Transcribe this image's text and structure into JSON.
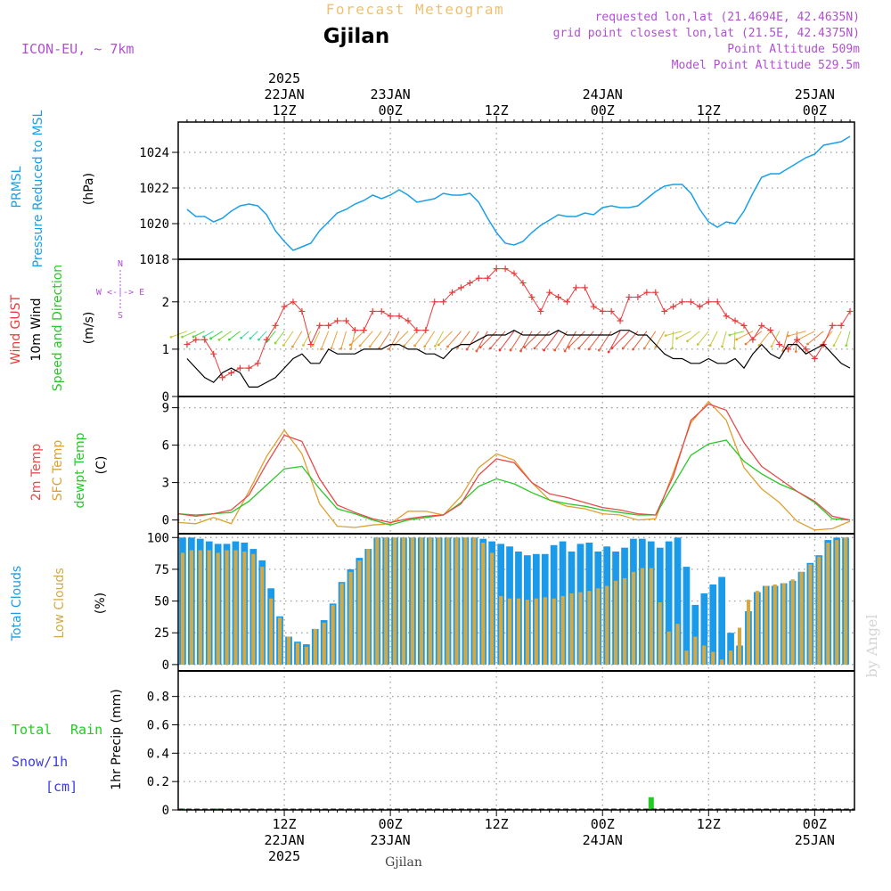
{
  "header": {
    "title": "Forecast Meteogram",
    "location": "Gjilan",
    "model": "ICON-EU, ~ 7km",
    "requested": "requested lon,lat (21.4694E, 42.4635N)",
    "grid": "grid point closest lon,lat (21.5E, 42.4375N)",
    "point_alt": "Point Altitude 509m",
    "model_alt": "Model Point Altitude 529.5m",
    "footer_location": "Gjilan",
    "credit": "by Angel"
  },
  "colors": {
    "pressure": "#1aa0e8",
    "gust": "#e83c3c",
    "wind": "#000000",
    "t2m": "#e84a4a",
    "sfc": "#e0a030",
    "dewpt": "#28c828",
    "total_clouds": "#1a9ae8",
    "low_clouds": "#d4a843",
    "rain": "#22cc22",
    "snow": "#3a3ae8",
    "purple": "#b050d0",
    "orange_title": "#f0c070"
  },
  "time_axis": {
    "top_labels": [
      {
        "h": 12,
        "lines": [
          "2025",
          "22JAN",
          "12Z"
        ]
      },
      {
        "h": 24,
        "lines": [
          "23JAN",
          "00Z"
        ]
      },
      {
        "h": 36,
        "lines": [
          "12Z"
        ]
      },
      {
        "h": 48,
        "lines": [
          "24JAN",
          "00Z"
        ]
      },
      {
        "h": 60,
        "lines": [
          "12Z"
        ]
      },
      {
        "h": 72,
        "lines": [
          "25JAN",
          "00Z"
        ]
      }
    ],
    "bottom_labels": [
      {
        "h": 12,
        "lines": [
          "12Z",
          "22JAN",
          "2025"
        ]
      },
      {
        "h": 24,
        "lines": [
          "00Z",
          "23JAN"
        ]
      },
      {
        "h": 36,
        "lines": [
          "12Z"
        ]
      },
      {
        "h": 48,
        "lines": [
          "00Z",
          "24JAN"
        ]
      },
      {
        "h": 60,
        "lines": [
          "12Z"
        ]
      },
      {
        "h": 72,
        "lines": [
          "00Z",
          "25JAN"
        ]
      }
    ]
  },
  "panel_labels": {
    "pressure": [
      "PRMSL",
      "Pressure Reduced to MSL",
      "(hPa)"
    ],
    "wind": [
      "Wind GUST",
      "10m Wind",
      "Speed and Direction",
      "(m/s)"
    ],
    "compass": [
      "N",
      "W <-|-> E",
      "S"
    ],
    "temp": [
      "2m Temp",
      "SFC Temp",
      "dewpt Temp",
      "(C)"
    ],
    "clouds": [
      "Total Clouds",
      "Low Clouds",
      "(%)"
    ],
    "precip": [
      "Total",
      "Rain",
      "Snow/1h",
      "[cm]",
      "1hr Precip (mm)"
    ]
  },
  "chart_data": [
    {
      "type": "line",
      "title": "PRMSL",
      "ylabel": "(hPa)",
      "ylim": [
        1018,
        1025.7
      ],
      "yticks": [
        1018,
        1020,
        1022,
        1024
      ],
      "x_hours": [
        1,
        2,
        3,
        4,
        5,
        6,
        7,
        8,
        9,
        10,
        11,
        12,
        13,
        14,
        15,
        16,
        17,
        18,
        19,
        20,
        21,
        22,
        23,
        24,
        25,
        26,
        27,
        28,
        29,
        30,
        31,
        32,
        33,
        34,
        35,
        36,
        37,
        38,
        39,
        40,
        41,
        42,
        43,
        44,
        45,
        46,
        47,
        48,
        49,
        50,
        51,
        52,
        53,
        54,
        55,
        56,
        57,
        58,
        59,
        60,
        61,
        62,
        63,
        64,
        65,
        66,
        67,
        68,
        69,
        70,
        71,
        72,
        73,
        74,
        75,
        76
      ],
      "values": [
        1020.8,
        1020.4,
        1020.4,
        1020.1,
        1020.3,
        1020.7,
        1021.0,
        1021.1,
        1021.0,
        1020.5,
        1019.6,
        1019.0,
        1018.5,
        1018.7,
        1018.9,
        1019.6,
        1020.1,
        1020.6,
        1020.8,
        1021.1,
        1021.3,
        1021.6,
        1021.4,
        1021.6,
        1021.9,
        1021.6,
        1021.2,
        1021.3,
        1021.4,
        1021.7,
        1021.6,
        1021.6,
        1021.7,
        1021.2,
        1020.3,
        1019.5,
        1018.9,
        1018.8,
        1019.0,
        1019.5,
        1019.9,
        1020.2,
        1020.5,
        1020.4,
        1020.4,
        1020.6,
        1020.5,
        1020.9,
        1021.0,
        1020.9,
        1020.9,
        1021.0,
        1021.4,
        1021.8,
        1022.1,
        1022.2,
        1022.2,
        1021.7,
        1020.8,
        1020.1,
        1019.8,
        1020.1,
        1020.0,
        1020.7,
        1021.7,
        1022.6,
        1022.8,
        1022.8,
        1023.1,
        1023.4,
        1023.7,
        1023.9,
        1024.4,
        1024.5,
        1024.6,
        1024.9
      ]
    },
    {
      "type": "line",
      "title": "Wind",
      "ylabel": "(m/s)",
      "ylim": [
        0,
        2.9
      ],
      "yticks": [
        0,
        1,
        2
      ],
      "x_hours": [
        1,
        2,
        3,
        4,
        5,
        6,
        7,
        8,
        9,
        10,
        11,
        12,
        13,
        14,
        15,
        16,
        17,
        18,
        19,
        20,
        21,
        22,
        23,
        24,
        25,
        26,
        27,
        28,
        29,
        30,
        31,
        32,
        33,
        34,
        35,
        36,
        37,
        38,
        39,
        40,
        41,
        42,
        43,
        44,
        45,
        46,
        47,
        48,
        49,
        50,
        51,
        52,
        53,
        54,
        55,
        56,
        57,
        58,
        59,
        60,
        61,
        62,
        63,
        64,
        65,
        66,
        67,
        68,
        69,
        70,
        71,
        72,
        73,
        74,
        75,
        76
      ],
      "series": [
        {
          "name": "Wind GUST",
          "values": [
            1.1,
            1.2,
            1.2,
            0.9,
            0.4,
            0.5,
            0.6,
            0.6,
            0.7,
            1.2,
            1.5,
            1.9,
            2.0,
            1.8,
            1.1,
            1.5,
            1.5,
            1.6,
            1.6,
            1.4,
            1.4,
            1.8,
            1.8,
            1.7,
            1.7,
            1.6,
            1.4,
            1.4,
            2.0,
            2.0,
            2.2,
            2.3,
            2.4,
            2.5,
            2.5,
            2.7,
            2.7,
            2.6,
            2.4,
            2.1,
            1.8,
            2.2,
            2.1,
            2.0,
            2.3,
            2.3,
            1.9,
            1.8,
            1.8,
            1.6,
            2.1,
            2.1,
            2.2,
            2.2,
            1.8,
            1.9,
            2.0,
            2.0,
            1.9,
            2.0,
            2.0,
            1.7,
            1.6,
            1.5,
            1.2,
            1.5,
            1.4,
            1.1,
            1.0,
            1.2,
            1.0,
            0.8,
            1.1,
            1.5,
            1.5,
            1.8
          ]
        },
        {
          "name": "10m Wind",
          "values": [
            0.8,
            0.6,
            0.4,
            0.3,
            0.5,
            0.6,
            0.5,
            0.2,
            0.2,
            0.3,
            0.4,
            0.6,
            0.8,
            0.9,
            0.7,
            0.7,
            1.0,
            0.9,
            0.9,
            0.9,
            1.0,
            1.0,
            1.0,
            1.1,
            1.1,
            1.0,
            1.0,
            0.9,
            0.9,
            0.8,
            1.0,
            1.1,
            1.1,
            1.2,
            1.3,
            1.3,
            1.3,
            1.4,
            1.3,
            1.3,
            1.3,
            1.3,
            1.4,
            1.3,
            1.3,
            1.3,
            1.3,
            1.3,
            1.3,
            1.4,
            1.4,
            1.3,
            1.3,
            1.1,
            0.9,
            0.8,
            0.8,
            0.7,
            0.7,
            0.8,
            0.7,
            0.7,
            0.8,
            0.6,
            0.9,
            1.1,
            0.9,
            0.8,
            1.1,
            1.1,
            0.9,
            1.0,
            1.1,
            0.9,
            0.7,
            0.6
          ]
        }
      ]
    },
    {
      "type": "line",
      "title": "Temperature",
      "ylabel": "(C)",
      "ylim": [
        -1.1,
        9.9
      ],
      "yticks": [
        0,
        3,
        6,
        9
      ],
      "x_hours": [
        0,
        2,
        4,
        6,
        8,
        10,
        12,
        14,
        16,
        18,
        20,
        22,
        24,
        26,
        28,
        30,
        32,
        34,
        36,
        38,
        40,
        42,
        44,
        46,
        48,
        50,
        52,
        54,
        56,
        58,
        60,
        62,
        64,
        66,
        68,
        70,
        72,
        74,
        76
      ],
      "series": [
        {
          "name": "2m Temp",
          "values": [
            0.5,
            0.3,
            0.5,
            0.8,
            2.0,
            4.5,
            6.8,
            6.3,
            3.3,
            1.2,
            0.6,
            0.1,
            -0.2,
            0.1,
            0.3,
            0.4,
            1.3,
            3.6,
            4.9,
            4.6,
            3.0,
            2.1,
            1.8,
            1.4,
            1.0,
            0.8,
            0.5,
            0.4,
            3.5,
            8.0,
            9.3,
            8.8,
            6.2,
            4.3,
            3.3,
            2.3,
            1.5,
            0.3,
            0.0
          ]
        },
        {
          "name": "SFC Temp",
          "values": [
            -0.2,
            -0.3,
            0.2,
            -0.3,
            2.3,
            5.1,
            7.2,
            5.3,
            1.3,
            -0.5,
            -0.6,
            -0.4,
            -0.3,
            0.7,
            0.7,
            0.4,
            1.9,
            4.2,
            5.3,
            4.8,
            3.0,
            1.6,
            1.1,
            0.9,
            0.5,
            0.4,
            0.0,
            0.1,
            3.8,
            7.8,
            9.5,
            8.0,
            4.2,
            2.5,
            1.4,
            -0.1,
            -0.8,
            -0.7,
            -0.1
          ]
        },
        {
          "name": "dewpt Temp",
          "values": [
            0.5,
            0.4,
            0.5,
            0.6,
            1.5,
            2.8,
            4.1,
            4.3,
            2.5,
            0.9,
            0.5,
            0.0,
            -0.4,
            0.0,
            0.2,
            0.4,
            1.4,
            2.7,
            3.3,
            2.9,
            2.2,
            1.6,
            1.3,
            1.1,
            0.8,
            0.6,
            0.4,
            0.4,
            2.8,
            5.2,
            6.1,
            6.4,
            4.7,
            3.7,
            2.9,
            2.3,
            1.4,
            0.1,
            0.0
          ]
        }
      ]
    },
    {
      "type": "bar",
      "title": "Clouds",
      "ylabel": "(%)",
      "ylim": [
        -5,
        103
      ],
      "yticks": [
        0,
        25,
        50,
        75,
        100
      ],
      "x_hours": [
        1,
        2,
        3,
        4,
        5,
        6,
        7,
        8,
        9,
        10,
        11,
        12,
        13,
        14,
        15,
        16,
        17,
        18,
        19,
        20,
        21,
        22,
        23,
        24,
        25,
        26,
        27,
        28,
        29,
        30,
        31,
        32,
        33,
        34,
        35,
        36,
        37,
        38,
        39,
        40,
        41,
        42,
        43,
        44,
        45,
        46,
        47,
        48,
        49,
        50,
        51,
        52,
        53,
        54,
        55,
        56,
        57,
        58,
        59,
        60,
        61,
        62,
        63,
        64,
        65,
        66,
        67,
        68,
        69,
        70,
        71,
        72,
        73,
        74,
        75,
        76
      ],
      "series": [
        {
          "name": "Total Clouds",
          "values": [
            100,
            100,
            99,
            97,
            95,
            95,
            97,
            96,
            91,
            82,
            60,
            38,
            22,
            18,
            16,
            28,
            35,
            48,
            65,
            75,
            84,
            91,
            100,
            100,
            100,
            100,
            100,
            100,
            100,
            100,
            100,
            100,
            100,
            100,
            99,
            97,
            95,
            93,
            89,
            86,
            87,
            87,
            94,
            97,
            89,
            95,
            96,
            89,
            93,
            89,
            92,
            99,
            99,
            97,
            92,
            97,
            100,
            77,
            47,
            56,
            63,
            69,
            25,
            15,
            42,
            57,
            62,
            62,
            64,
            66,
            73,
            80,
            86,
            98,
            100,
            100
          ]
        },
        {
          "name": "Low Clouds",
          "values": [
            88,
            90,
            90,
            90,
            88,
            90,
            90,
            89,
            87,
            77,
            52,
            37,
            22,
            17,
            14,
            28,
            33,
            47,
            64,
            73,
            82,
            91,
            100,
            100,
            100,
            100,
            100,
            100,
            100,
            100,
            100,
            100,
            100,
            100,
            96,
            88,
            54,
            52,
            52,
            51,
            52,
            53,
            52,
            54,
            56,
            57,
            58,
            60,
            62,
            66,
            68,
            73,
            76,
            76,
            49,
            26,
            32,
            11,
            22,
            15,
            10,
            4,
            11,
            29,
            51,
            58,
            62,
            63,
            64,
            67,
            73,
            79,
            85,
            96,
            98,
            100
          ]
        }
      ]
    },
    {
      "type": "bar",
      "title": "1hr Precip",
      "ylabel": "1hr Precip (mm)",
      "ylim": [
        0,
        0.98
      ],
      "yticks": [
        0,
        0.2,
        0.4,
        0.6,
        0.8
      ],
      "series": [
        {
          "name": "Total Rain",
          "x_hours": [
            1,
            5,
            54
          ],
          "values": [
            0.01,
            0.01,
            0.09
          ]
        }
      ]
    }
  ]
}
